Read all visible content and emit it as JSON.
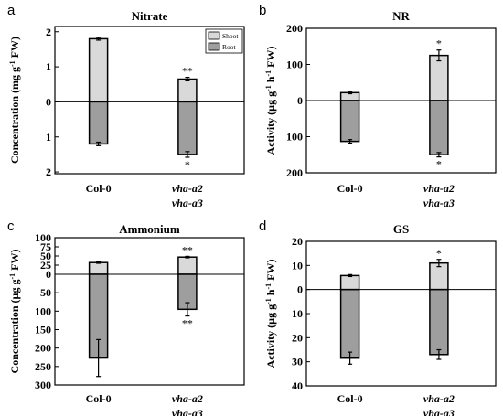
{
  "chart_data": [
    {
      "panel": "a",
      "title": "Nitrate",
      "type": "bar",
      "ylabel": "Concentration (mg g-1 FW)",
      "ylabel_parts": [
        "Concentration (mg g",
        "-1",
        " FW)"
      ],
      "categories": [
        {
          "label_lines": [
            "Col-0"
          ],
          "italic": false
        },
        {
          "label_lines": [
            "vha-a2",
            "vha-a3"
          ],
          "italic": true
        }
      ],
      "yticks": [
        {
          "value": 2,
          "label": "2"
        },
        {
          "value": 1,
          "label": "1"
        },
        {
          "value": 0,
          "label": "0"
        },
        {
          "value": -1,
          "label": "1"
        },
        {
          "value": -2,
          "label": "2"
        }
      ],
      "ylim": [
        -2.05,
        2.15
      ],
      "legend": [
        "Shoot",
        "Root"
      ],
      "legend_position": "top-right",
      "series": [
        {
          "name": "Shoot",
          "color": "#d9d9d9",
          "values": [
            1.8,
            0.65
          ],
          "errors": [
            0.04,
            0.05
          ],
          "stars": [
            "",
            "**"
          ]
        },
        {
          "name": "Root",
          "color": "#9e9e9e",
          "values": [
            -1.2,
            -1.5
          ],
          "errors": [
            0.05,
            0.08
          ],
          "stars": [
            "",
            "*"
          ]
        }
      ]
    },
    {
      "panel": "b",
      "title": "NR",
      "type": "bar",
      "ylabel": "Activity (µg g-1 h-1 FW)",
      "ylabel_parts": [
        "Activity (µg g",
        "-1",
        " h",
        "-1",
        " FW)"
      ],
      "categories": [
        {
          "label_lines": [
            "Col-0"
          ],
          "italic": false
        },
        {
          "label_lines": [
            "vha-a2",
            "vha-a3"
          ],
          "italic": true
        }
      ],
      "yticks": [
        {
          "value": 200,
          "label": "200"
        },
        {
          "value": 100,
          "label": "100"
        },
        {
          "value": 0,
          "label": "0"
        },
        {
          "value": -100,
          "label": "100"
        },
        {
          "value": -200,
          "label": "200"
        }
      ],
      "ylim": [
        -200,
        200
      ],
      "series": [
        {
          "name": "Shoot",
          "color": "#d9d9d9",
          "values": [
            22,
            125
          ],
          "errors": [
            3,
            15
          ],
          "stars": [
            "",
            "*"
          ]
        },
        {
          "name": "Root",
          "color": "#9e9e9e",
          "values": [
            -113,
            -150
          ],
          "errors": [
            5,
            6
          ],
          "stars": [
            "",
            "*"
          ]
        }
      ]
    },
    {
      "panel": "c",
      "title": "Ammonium",
      "type": "bar",
      "ylabel": "Concentration (µg g-1 FW)",
      "ylabel_parts": [
        "Concentration (µg g",
        "-1",
        " FW)"
      ],
      "categories": [
        {
          "label_lines": [
            "Col-0"
          ],
          "italic": false
        },
        {
          "label_lines": [
            "vha-a2",
            "vha-a3"
          ],
          "italic": true
        }
      ],
      "yticks": [
        {
          "value": 100,
          "label": "100"
        },
        {
          "value": 75,
          "label": "75"
        },
        {
          "value": 50,
          "label": "50"
        },
        {
          "value": 25,
          "label": "25"
        },
        {
          "value": 0,
          "label": "0"
        },
        {
          "value": -50,
          "label": "50"
        },
        {
          "value": -100,
          "label": "100"
        },
        {
          "value": -150,
          "label": "150"
        },
        {
          "value": -200,
          "label": "200"
        },
        {
          "value": -250,
          "label": "250"
        },
        {
          "value": -300,
          "label": "300"
        }
      ],
      "scale_note": "upper axis 0-100 and lower axis 0-300 drawn at different scales",
      "ylim": [
        -300,
        100
      ],
      "series": [
        {
          "name": "Shoot",
          "color": "#d9d9d9",
          "values": [
            32,
            47
          ],
          "errors": [
            2,
            2
          ],
          "stars": [
            "",
            "**"
          ]
        },
        {
          "name": "Root",
          "color": "#9e9e9e",
          "values": [
            -227,
            -95
          ],
          "errors": [
            50,
            18
          ],
          "stars": [
            "",
            "**"
          ]
        }
      ]
    },
    {
      "panel": "d",
      "title": "GS",
      "type": "bar",
      "ylabel": "Activity (µg g-1 h-1 FW)",
      "ylabel_parts": [
        "Activity (µg g",
        "-1",
        " h",
        "-1",
        " FW)"
      ],
      "categories": [
        {
          "label_lines": [
            "Col-0"
          ],
          "italic": false
        },
        {
          "label_lines": [
            "vha-a2",
            "vha-a3"
          ],
          "italic": true
        }
      ],
      "yticks": [
        {
          "value": 20,
          "label": "20"
        },
        {
          "value": 10,
          "label": "10"
        },
        {
          "value": 0,
          "label": "0"
        },
        {
          "value": -10,
          "label": "10"
        },
        {
          "value": -20,
          "label": "20"
        },
        {
          "value": -30,
          "label": "30"
        },
        {
          "value": -40,
          "label": "40"
        }
      ],
      "ylim": [
        -40,
        20
      ],
      "series": [
        {
          "name": "Shoot",
          "color": "#d9d9d9",
          "values": [
            5.8,
            11
          ],
          "errors": [
            0.4,
            1.5
          ],
          "stars": [
            "",
            "*"
          ]
        },
        {
          "name": "Root",
          "color": "#9e9e9e",
          "values": [
            -28.5,
            -27
          ],
          "errors": [
            2.5,
            2
          ],
          "stars": [
            "",
            ""
          ]
        }
      ]
    }
  ]
}
